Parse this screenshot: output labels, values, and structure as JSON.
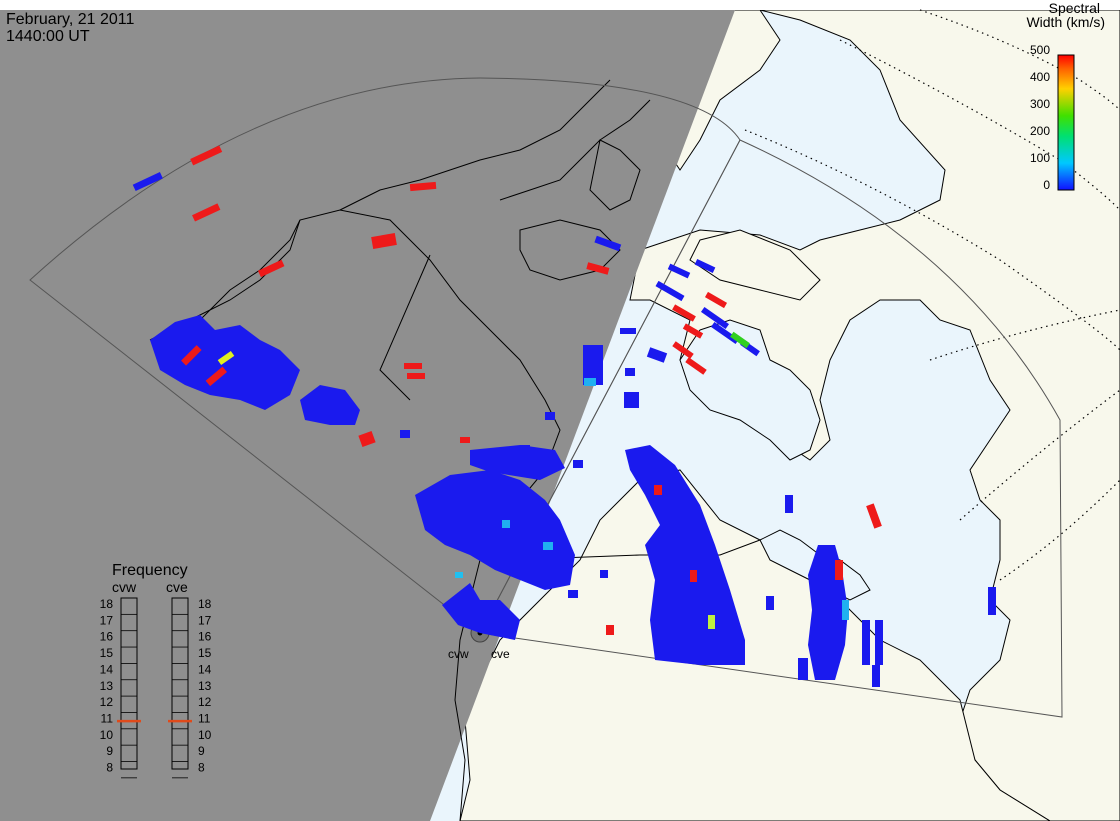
{
  "header": {
    "date": "February, 21 2011",
    "time": "1440:00 UT"
  },
  "colorbar": {
    "title_line1": "Spectral",
    "title_line2": "Width (km/s)",
    "ticks": [
      "500",
      "400",
      "300",
      "200",
      "100",
      "0"
    ]
  },
  "frequency": {
    "title": "Frequency",
    "left_label": "cvw",
    "right_label": "cve",
    "levels": [
      "18",
      "17",
      "16",
      "15",
      "14",
      "13",
      "12",
      "11",
      "10",
      "9",
      "8"
    ],
    "cvw_value": 11,
    "cve_value": 11,
    "marker_color": "#e04a1a"
  },
  "radars": {
    "west_label": "cvw",
    "east_label": "cve"
  },
  "colors": {
    "night": "#8f8f8f",
    "land_day": "#f8f8ec",
    "ocean_day": "#eaf5fc",
    "low": "#1a1aee",
    "high": "#ee1a1a"
  }
}
